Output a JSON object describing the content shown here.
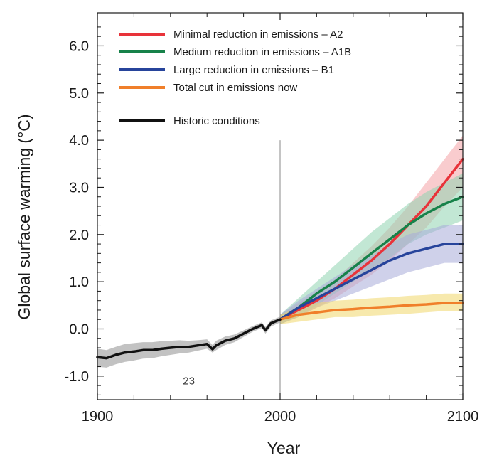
{
  "chart_data": {
    "type": "line",
    "title": "",
    "xlabel": "Year",
    "ylabel": "Global surface warming (°C)",
    "xlim": [
      1900,
      2100
    ],
    "ylim": [
      -1.5,
      6.7
    ],
    "x_ticks": [
      1900,
      2000,
      2100
    ],
    "x_tick_labels": [
      "1900",
      "2000",
      "2100"
    ],
    "y_ticks": [
      -1.0,
      0.0,
      1.0,
      2.0,
      3.0,
      4.0,
      5.0,
      6.0
    ],
    "y_tick_labels": [
      "-1.0",
      "0.0",
      "1.0",
      "2.0",
      "3.0",
      "4.0",
      "5.0",
      "6.0"
    ],
    "grid": false,
    "legend_position": "top-left",
    "reference_line_x": 2000,
    "annotation": "23",
    "annotation_x": 1945,
    "annotation_y": -1.1,
    "series": [
      {
        "name": "Minimal reduction in emissions – A2",
        "color": "#e8333a",
        "band_color": "#f4a3a6",
        "x": [
          2000,
          2010,
          2020,
          2030,
          2040,
          2050,
          2060,
          2070,
          2080,
          2090,
          2100
        ],
        "values": [
          0.2,
          0.4,
          0.6,
          0.85,
          1.15,
          1.45,
          1.8,
          2.2,
          2.6,
          3.1,
          3.6
        ],
        "lower": [
          0.1,
          0.25,
          0.45,
          0.65,
          0.9,
          1.15,
          1.45,
          1.8,
          2.15,
          2.6,
          3.0
        ],
        "upper": [
          0.3,
          0.55,
          0.8,
          1.05,
          1.4,
          1.75,
          2.15,
          2.6,
          3.1,
          3.6,
          4.1
        ]
      },
      {
        "name": "Medium reduction in emissions – A1B",
        "color": "#17824a",
        "band_color": "#8fd4b0",
        "x": [
          2000,
          2010,
          2020,
          2030,
          2040,
          2050,
          2060,
          2070,
          2080,
          2090,
          2100
        ],
        "values": [
          0.2,
          0.45,
          0.75,
          1.0,
          1.3,
          1.6,
          1.9,
          2.2,
          2.45,
          2.65,
          2.8
        ],
        "lower": [
          0.1,
          0.25,
          0.5,
          0.75,
          1.0,
          1.25,
          1.5,
          1.8,
          2.0,
          2.15,
          2.3
        ],
        "upper": [
          0.3,
          0.65,
          1.0,
          1.35,
          1.7,
          2.05,
          2.35,
          2.65,
          2.9,
          3.1,
          3.3
        ]
      },
      {
        "name": "Large reduction in emissions – B1",
        "color": "#27449b",
        "band_color": "#a7acd8",
        "x": [
          2000,
          2010,
          2020,
          2030,
          2040,
          2050,
          2060,
          2070,
          2080,
          2090,
          2100
        ],
        "values": [
          0.2,
          0.45,
          0.65,
          0.85,
          1.05,
          1.25,
          1.45,
          1.6,
          1.7,
          1.8,
          1.8
        ],
        "lower": [
          0.1,
          0.25,
          0.45,
          0.6,
          0.75,
          0.9,
          1.05,
          1.2,
          1.3,
          1.4,
          1.4
        ],
        "upper": [
          0.3,
          0.6,
          0.85,
          1.1,
          1.35,
          1.55,
          1.8,
          2.0,
          2.1,
          2.2,
          2.2
        ]
      },
      {
        "name": "Total cut in emissions now",
        "color": "#f07f2a",
        "band_color": "#f1d76a",
        "x": [
          2000,
          2010,
          2020,
          2030,
          2040,
          2050,
          2060,
          2070,
          2080,
          2090,
          2100
        ],
        "values": [
          0.2,
          0.3,
          0.35,
          0.4,
          0.42,
          0.45,
          0.47,
          0.5,
          0.52,
          0.55,
          0.55
        ],
        "lower": [
          0.1,
          0.15,
          0.2,
          0.25,
          0.25,
          0.28,
          0.3,
          0.32,
          0.35,
          0.38,
          0.38
        ],
        "upper": [
          0.3,
          0.45,
          0.55,
          0.6,
          0.62,
          0.65,
          0.67,
          0.7,
          0.72,
          0.75,
          0.75
        ]
      },
      {
        "name": "Historic conditions",
        "color": "#111111",
        "band_color": "#8f8f8f",
        "x": [
          1900,
          1905,
          1910,
          1915,
          1920,
          1925,
          1930,
          1935,
          1940,
          1945,
          1950,
          1955,
          1960,
          1963,
          1965,
          1970,
          1975,
          1980,
          1985,
          1990,
          1992,
          1995,
          2000
        ],
        "values": [
          -0.6,
          -0.62,
          -0.55,
          -0.5,
          -0.48,
          -0.45,
          -0.45,
          -0.42,
          -0.4,
          -0.38,
          -0.38,
          -0.35,
          -0.32,
          -0.43,
          -0.35,
          -0.25,
          -0.2,
          -0.1,
          0.0,
          0.08,
          -0.03,
          0.12,
          0.2
        ],
        "lower": [
          -0.8,
          -0.82,
          -0.75,
          -0.7,
          -0.67,
          -0.63,
          -0.62,
          -0.58,
          -0.55,
          -0.52,
          -0.5,
          -0.46,
          -0.42,
          -0.5,
          -0.45,
          -0.34,
          -0.28,
          -0.17,
          -0.06,
          0.02,
          -0.1,
          0.05,
          0.14
        ],
        "upper": [
          -0.42,
          -0.45,
          -0.38,
          -0.32,
          -0.3,
          -0.28,
          -0.28,
          -0.26,
          -0.25,
          -0.24,
          -0.25,
          -0.24,
          -0.22,
          -0.34,
          -0.25,
          -0.16,
          -0.12,
          -0.03,
          0.06,
          0.14,
          0.04,
          0.18,
          0.26
        ]
      }
    ]
  },
  "colors": {
    "axis": "#1a1a1a",
    "reference_line": "#8a8a8a"
  }
}
